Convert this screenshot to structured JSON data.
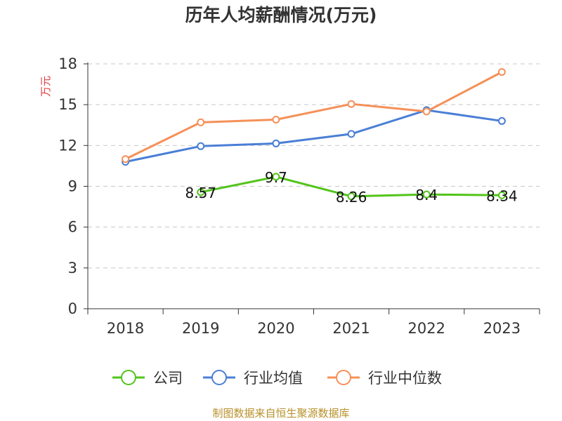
{
  "chart_data": {
    "type": "line",
    "title": "历年人均薪酬情况(万元)",
    "ylabel": "万元",
    "xlabel": "",
    "categories": [
      "2018",
      "2019",
      "2020",
      "2021",
      "2022",
      "2023"
    ],
    "ylim": [
      0,
      18
    ],
    "yticks": [
      0,
      3,
      6,
      9,
      12,
      15,
      18
    ],
    "grid": true,
    "legend_position": "bottom",
    "series": [
      {
        "name": "公司",
        "color": "#52c41a",
        "values": [
          null,
          8.57,
          9.7,
          8.26,
          8.4,
          8.34
        ],
        "labels": [
          null,
          "8.57",
          "9.7",
          "8.26",
          "8.4",
          "8.34"
        ]
      },
      {
        "name": "行业均值",
        "color": "#4a7fd6",
        "values": [
          10.8,
          11.95,
          12.15,
          12.85,
          14.6,
          13.8
        ]
      },
      {
        "name": "行业中位数",
        "color": "#f59058",
        "values": [
          11.0,
          13.7,
          13.9,
          15.05,
          14.5,
          17.4
        ]
      }
    ]
  },
  "footer": {
    "source": "制图数据来自恒生聚源数据库"
  }
}
